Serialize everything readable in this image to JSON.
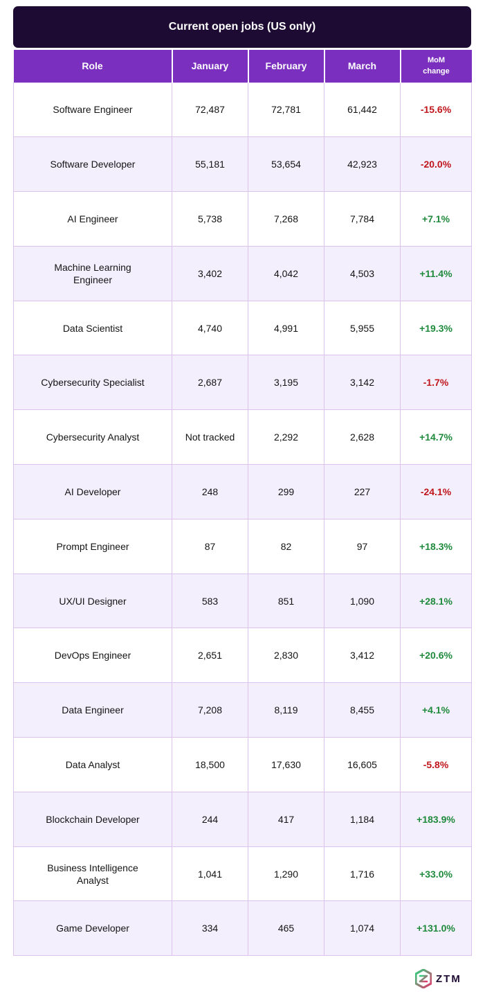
{
  "title": "Current open jobs (US only)",
  "columns": {
    "role": "Role",
    "january": "January",
    "february": "February",
    "march": "March",
    "mom_line1": "MoM",
    "mom_line2": "change"
  },
  "rows": [
    {
      "role": "Software Engineer",
      "january": "72,487",
      "february": "72,781",
      "march": "61,442",
      "change": "-15.6%"
    },
    {
      "role": "Software Developer",
      "january": "55,181",
      "february": "53,654",
      "march": "42,923",
      "change": "-20.0%"
    },
    {
      "role": "AI Engineer",
      "january": "5,738",
      "february": "7,268",
      "march": "7,784",
      "change": "+7.1%"
    },
    {
      "role": "Machine Learning Engineer",
      "january": "3,402",
      "february": "4,042",
      "march": "4,503",
      "change": "+11.4%"
    },
    {
      "role": "Data Scientist",
      "january": "4,740",
      "february": "4,991",
      "march": "5,955",
      "change": "+19.3%"
    },
    {
      "role": "Cybersecurity Specialist",
      "january": "2,687",
      "february": "3,195",
      "march": "3,142",
      "change": "-1.7%"
    },
    {
      "role": "Cybersecurity Analyst",
      "january": "Not tracked",
      "february": "2,292",
      "march": "2,628",
      "change": "+14.7%"
    },
    {
      "role": "AI Developer",
      "january": "248",
      "february": "299",
      "march": "227",
      "change": "-24.1%"
    },
    {
      "role": "Prompt Engineer",
      "january": "87",
      "february": "82",
      "march": "97",
      "change": "+18.3%"
    },
    {
      "role": "UX/UI Designer",
      "january": "583",
      "february": "851",
      "march": "1,090",
      "change": "+28.1%"
    },
    {
      "role": "DevOps Engineer",
      "january": "2,651",
      "february": "2,830",
      "march": "3,412",
      "change": "+20.6%"
    },
    {
      "role": "Data Engineer",
      "january": "7,208",
      "february": "8,119",
      "march": "8,455",
      "change": "+4.1%"
    },
    {
      "role": "Data Analyst",
      "january": "18,500",
      "february": "17,630",
      "march": "16,605",
      "change": "-5.8%"
    },
    {
      "role": "Blockchain Developer",
      "january": "244",
      "february": "417",
      "march": "1,184",
      "change": "+183.9%"
    },
    {
      "role": "Business Intelligence Analyst",
      "january": "1,041",
      "february": "1,290",
      "march": "1,716",
      "change": "+33.0%"
    },
    {
      "role": "Game Developer",
      "january": "334",
      "february": "465",
      "march": "1,074",
      "change": "+131.0%"
    }
  ],
  "colors": {
    "title_bg": "#1e0b33",
    "header_bg": "#7a2fbf",
    "row_alt_bg": "#f3effd",
    "border": "#dcc3ee",
    "negative": "#c0161c",
    "positive": "#1f8a3c"
  },
  "logo": {
    "icon": "ztm-logo-icon",
    "text": "ZTM"
  }
}
